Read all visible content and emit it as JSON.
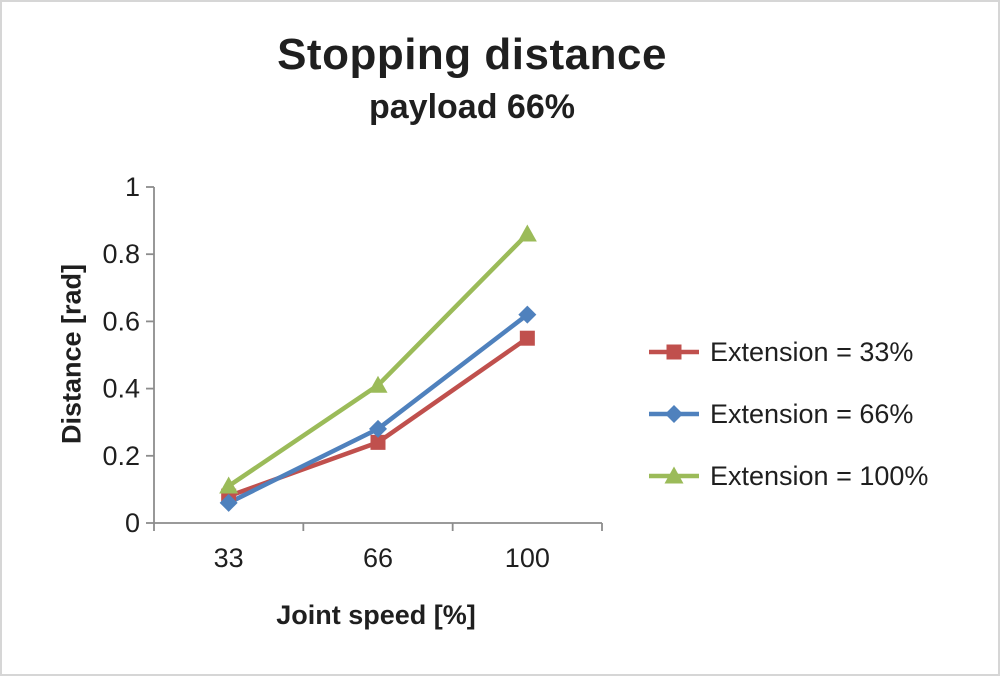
{
  "chart_data": {
    "type": "line",
    "title": "Stopping distance",
    "subtitle": "payload 66%",
    "xlabel": "Joint speed [%]",
    "ylabel": "Distance [rad]",
    "categories": [
      "33",
      "66",
      "100"
    ],
    "series": [
      {
        "name": "Extension = 33%",
        "marker": "square",
        "color": "#c0504d",
        "values": [
          0.08,
          0.24,
          0.55
        ]
      },
      {
        "name": "Extension = 66%",
        "marker": "diamond",
        "color": "#4f81bd",
        "values": [
          0.06,
          0.28,
          0.62
        ]
      },
      {
        "name": "Extension = 100%",
        "marker": "triangle",
        "color": "#9bbb59",
        "values": [
          0.11,
          0.41,
          0.86
        ]
      }
    ],
    "ylim": [
      0,
      1
    ],
    "yticks": [
      0,
      0.2,
      0.4,
      0.6,
      0.8,
      1
    ],
    "grid": false,
    "legend_position": "right",
    "axis_color": "#8c8c8c"
  }
}
